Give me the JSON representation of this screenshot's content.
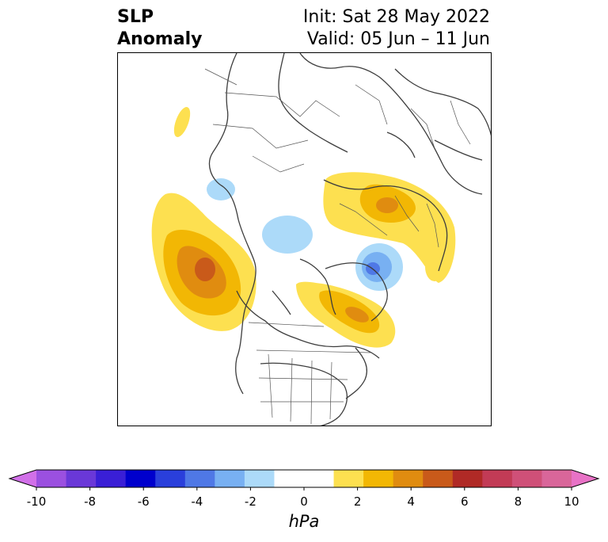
{
  "title": {
    "left_line1": "SLP",
    "left_line2": "Anomaly",
    "right_line1": "Init: Sat 28 May 2022",
    "right_line2": "Valid: 05 Jun – 11 Jun"
  },
  "colorbar": {
    "unit": "hPa",
    "tick_labels": [
      "-10",
      "-8",
      "-6",
      "-4",
      "-2",
      "0",
      "2",
      "4",
      "6",
      "8",
      "10"
    ],
    "tick_values": [
      -10,
      -8,
      -6,
      -4,
      -2,
      0,
      2,
      4,
      6,
      8,
      10
    ],
    "colors": [
      "#d170e8",
      "#9b50e0",
      "#6a38d8",
      "#3a1fd6",
      "#0000cd",
      "#2a3fdb",
      "#4f78e6",
      "#78b0f2",
      "#acdaf9",
      "#ffffff",
      "#ffffff",
      "#fde050",
      "#f2b704",
      "#e08c10",
      "#c95a1a",
      "#b02a26",
      "#c23b56",
      "#cf5078",
      "#d9669a",
      "#e872c6"
    ],
    "extend": "both"
  },
  "map": {
    "projection": "north polar stereographic",
    "variable": "sea level pressure anomaly"
  }
}
